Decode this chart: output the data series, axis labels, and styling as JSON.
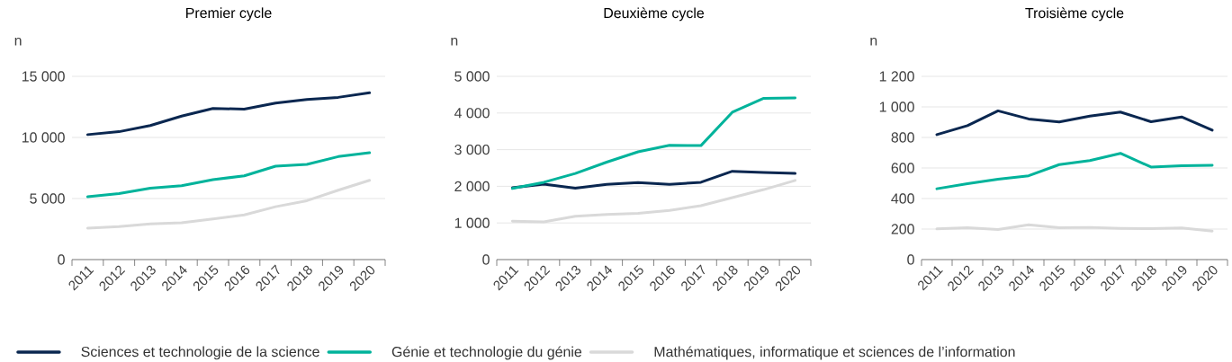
{
  "chart_data": [
    {
      "type": "line",
      "title": "Premier cycle",
      "ylabel": "n",
      "categories": [
        "2011",
        "2012",
        "2013",
        "2014",
        "2015",
        "2016",
        "2017",
        "2018",
        "2019",
        "2020"
      ],
      "series": [
        {
          "name": "Sciences et technologie de la science",
          "color": "#0a2750",
          "values": [
            10230,
            10470,
            10970,
            11750,
            12370,
            12320,
            12810,
            13100,
            13280,
            13650
          ]
        },
        {
          "name": "Génie et technologie du génie",
          "color": "#00b39b",
          "values": [
            5140,
            5410,
            5850,
            6050,
            6540,
            6860,
            7650,
            7790,
            8430,
            8750
          ]
        },
        {
          "name": "Mathématiques, informatique et sciences de l’information",
          "color": "#d9d9d9",
          "values": [
            2580,
            2700,
            2930,
            3020,
            3320,
            3660,
            4330,
            4820,
            5680,
            6490
          ]
        }
      ],
      "ylim": [
        0,
        15000
      ],
      "yticks": [
        0,
        {
          "value": 5000,
          "label": "5 000"
        },
        {
          "value": 10000,
          "label": "10 000"
        },
        {
          "value": 15000,
          "label": "15 000"
        }
      ],
      "grid": "y",
      "legend": "bottom"
    },
    {
      "type": "line",
      "title": "Deuxième cycle",
      "ylabel": "n",
      "categories": [
        "2011",
        "2012",
        "2013",
        "2014",
        "2015",
        "2016",
        "2017",
        "2018",
        "2019",
        "2020"
      ],
      "series": [
        {
          "color": "#0a2750",
          "values": [
            1960,
            2060,
            1950,
            2050,
            2100,
            2050,
            2110,
            2410,
            2380,
            2350
          ]
        },
        {
          "color": "#00b39b",
          "values": [
            1940,
            2110,
            2350,
            2660,
            2940,
            3120,
            3110,
            4020,
            4400,
            4410
          ]
        },
        {
          "color": "#d9d9d9",
          "values": [
            1050,
            1030,
            1180,
            1230,
            1260,
            1340,
            1470,
            1690,
            1910,
            2160
          ]
        }
      ],
      "ylim": [
        0,
        5000
      ],
      "yticks": [
        0,
        {
          "value": 1000,
          "label": "1 000"
        },
        {
          "value": 2000,
          "label": "2 000"
        },
        {
          "value": 3000,
          "label": "3 000"
        },
        {
          "value": 4000,
          "label": "4 000"
        },
        {
          "value": 5000,
          "label": "5 000"
        }
      ],
      "grid": "y"
    },
    {
      "type": "line",
      "title": "Troisième cycle",
      "ylabel": "n",
      "categories": [
        "2011",
        "2012",
        "2013",
        "2014",
        "2015",
        "2016",
        "2017",
        "2018",
        "2019",
        "2020"
      ],
      "series": [
        {
          "color": "#0a2750",
          "values": [
            818,
            877,
            974,
            921,
            901,
            940,
            966,
            903,
            934,
            848
          ]
        },
        {
          "color": "#00b39b",
          "values": [
            464,
            497,
            527,
            549,
            622,
            649,
            696,
            606,
            614,
            618
          ]
        },
        {
          "color": "#d9d9d9",
          "values": [
            201,
            209,
            197,
            228,
            209,
            211,
            205,
            203,
            207,
            187
          ]
        }
      ],
      "ylim": [
        0,
        1200
      ],
      "yticks": [
        0,
        200,
        400,
        600,
        800,
        {
          "value": 1000,
          "label": "1 000"
        },
        {
          "value": 1200,
          "label": "1 200"
        }
      ],
      "grid": "y"
    }
  ]
}
